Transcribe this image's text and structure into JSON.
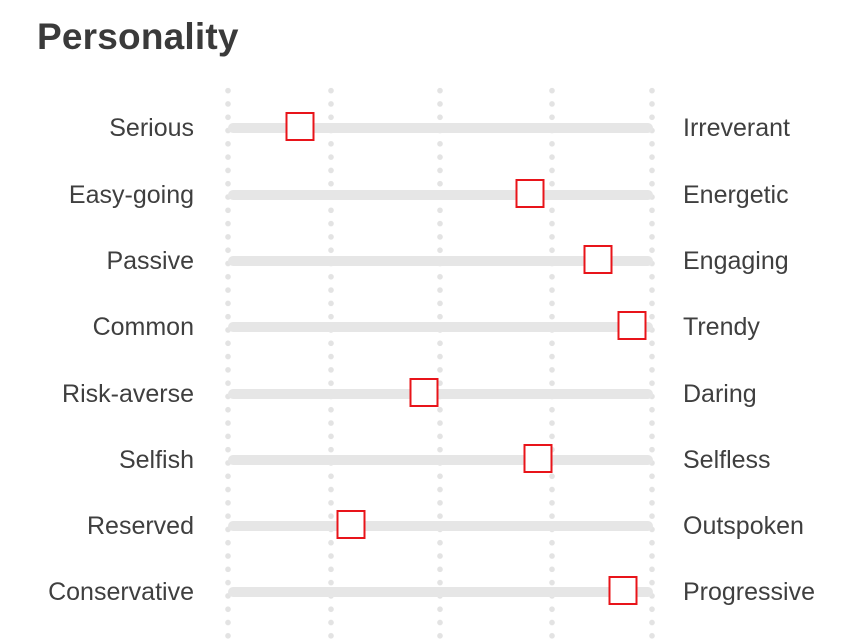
{
  "title": "Personality",
  "accent_color": "#e8141a",
  "track_color": "#e6e6e6",
  "traits": [
    {
      "left": "Serious",
      "right": "Irreverant",
      "value": 0.17
    },
    {
      "left": "Easy-going",
      "right": "Energetic",
      "value": 0.71
    },
    {
      "left": "Passive",
      "right": "Engaging",
      "value": 0.87
    },
    {
      "left": "Common",
      "right": "Trendy",
      "value": 0.95
    },
    {
      "left": "Risk-averse",
      "right": "Daring",
      "value": 0.46
    },
    {
      "left": "Selfish",
      "right": "Selfless",
      "value": 0.73
    },
    {
      "left": "Reserved",
      "right": "Outspoken",
      "value": 0.29
    },
    {
      "left": "Conservative",
      "right": "Progressive",
      "value": 0.93
    }
  ]
}
